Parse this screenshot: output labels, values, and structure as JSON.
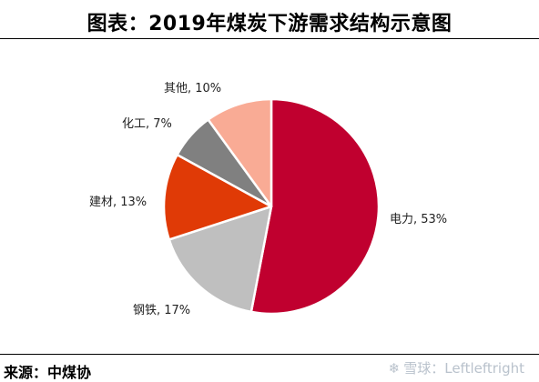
{
  "title": "图表：2019年煤炭下游需求结构示意图",
  "source": "来源：中煤协",
  "watermark": {
    "text": "雪球：Leftleftright",
    "icon": "snowball-logo-icon"
  },
  "chart_data": {
    "type": "pie",
    "title": "图表：2019年煤炭下游需求结构示意图",
    "slices": [
      {
        "label": "电力, 53%",
        "value": 53,
        "color": "#c0002f"
      },
      {
        "label": "钢铁, 17%",
        "value": 17,
        "color": "#bfbfbf"
      },
      {
        "label": "建材, 13%",
        "value": 13,
        "color": "#e03a06"
      },
      {
        "label": "化工, 7%",
        "value": 7,
        "color": "#808080"
      },
      {
        "label": "其他, 10%",
        "value": 10,
        "color": "#f9ab95"
      }
    ],
    "start_angle_deg": 0,
    "direction": "clockwise",
    "legend": "none",
    "labels": "outside"
  }
}
